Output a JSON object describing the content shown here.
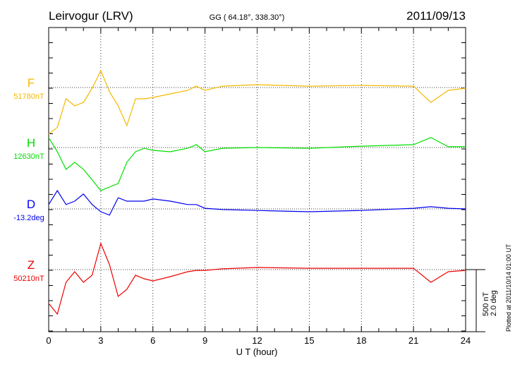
{
  "chart_data": {
    "type": "line",
    "title": "Leirvogur (LRV)",
    "subtitle": "GG ( 64.18°, 338.30°)",
    "date": "2011/09/13",
    "xlabel": "U T (hour)",
    "xlim": [
      0,
      24
    ],
    "xticks": [
      "0",
      "3",
      "6",
      "9",
      "12",
      "15",
      "18",
      "21",
      "24"
    ],
    "grid": "dotted vertical every 3 hours; dotted baselines per component",
    "scale_bar": {
      "nT": 500,
      "deg": 2.0,
      "label_nT": "500 nT",
      "label_deg": "2.0 deg"
    },
    "plotted_note": "Plotted at 2011/10/14 01:00 UT",
    "x": [
      0,
      0.5,
      1,
      1.5,
      2,
      2.5,
      3,
      3.5,
      4,
      4.5,
      5,
      5.5,
      6,
      7,
      8,
      8.5,
      9,
      10,
      12,
      15,
      18,
      21,
      22,
      23,
      24
    ],
    "series": [
      {
        "name": "F",
        "baseline_label": "51780nT",
        "unit": "nT",
        "color": "#f5b800",
        "values": [
          -375,
          -320,
          -90,
          -148,
          -120,
          -6,
          136,
          -34,
          -148,
          -307,
          -91,
          -91,
          -80,
          -51,
          -23,
          11,
          -23,
          11,
          23,
          11,
          17,
          11,
          -120,
          -23,
          -6
        ]
      },
      {
        "name": "H",
        "baseline_label": "12630nT",
        "unit": "nT",
        "color": "#00e000",
        "values": [
          80,
          -34,
          -176,
          -119,
          -176,
          -261,
          -347,
          -318,
          -290,
          -119,
          -34,
          -6,
          -23,
          -34,
          -6,
          23,
          -34,
          -6,
          0,
          -6,
          11,
          23,
          80,
          6,
          6
        ]
      },
      {
        "name": "D",
        "baseline_label": "-13.2deg",
        "unit": "deg",
        "color": "#0000ee",
        "values": [
          0.14,
          0.59,
          0.14,
          0.25,
          0.48,
          0.14,
          -0.09,
          -0.2,
          0.36,
          0.25,
          0.25,
          0.25,
          0.32,
          0.25,
          0.14,
          0.14,
          0.02,
          -0.02,
          -0.05,
          -0.09,
          -0.05,
          0.02,
          0.07,
          0.02,
          0
        ]
      },
      {
        "name": "Z",
        "baseline_label": "50210nT",
        "unit": "nT",
        "color": "#ee0000",
        "values": [
          -273,
          -358,
          -102,
          -17,
          -102,
          -45,
          210,
          40,
          -216,
          -159,
          -45,
          -74,
          -91,
          -57,
          -17,
          -6,
          -6,
          6,
          17,
          11,
          11,
          11,
          -102,
          -17,
          -6
        ]
      }
    ]
  }
}
